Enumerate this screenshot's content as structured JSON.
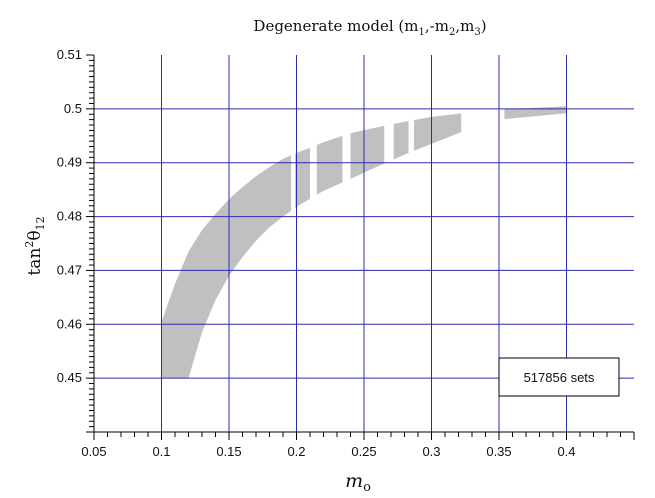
{
  "chart_data": {
    "type": "scatter",
    "title": "Degenerate model (m",
    "title_parts": [
      "Degenerate model (m",
      "1",
      ",-m",
      "2",
      ",m",
      "3",
      ")"
    ],
    "xlabel": "m",
    "xlabel_sub": "o",
    "ylabel": "tan",
    "ylabel_sup": "2",
    "ylabel_theta": "θ",
    "ylabel_sub": "12",
    "xlim": [
      0.05,
      0.45
    ],
    "ylim": [
      0.44,
      0.51
    ],
    "x_ticks": [
      0.05,
      0.1,
      0.15,
      0.2,
      0.25,
      0.3,
      0.35,
      0.4
    ],
    "x_tick_labels": [
      "0.05",
      "0.1",
      "0.15",
      "0.2",
      "0.25",
      "0.3",
      "0.35",
      "0.4"
    ],
    "y_ticks": [
      0.45,
      0.46,
      0.47,
      0.48,
      0.49,
      0.5,
      0.51
    ],
    "y_tick_labels": [
      "0.45",
      "0.46",
      "0.47",
      "0.48",
      "0.49",
      "0.5",
      "0.51"
    ],
    "grid": true,
    "grid_color": "#2b2bb0",
    "region_color": "#c0c0c0",
    "legend": {
      "text": "517856 sets",
      "placement": "bottom-right"
    },
    "band_upper": [
      {
        "x": 0.1,
        "y": 0.4605
      },
      {
        "x": 0.11,
        "y": 0.4675
      },
      {
        "x": 0.12,
        "y": 0.4735
      },
      {
        "x": 0.13,
        "y": 0.4775
      },
      {
        "x": 0.14,
        "y": 0.4805
      },
      {
        "x": 0.15,
        "y": 0.4832
      },
      {
        "x": 0.16,
        "y": 0.4855
      },
      {
        "x": 0.17,
        "y": 0.4875
      },
      {
        "x": 0.18,
        "y": 0.4892
      },
      {
        "x": 0.19,
        "y": 0.4907
      },
      {
        "x": 0.2,
        "y": 0.4918
      },
      {
        "x": 0.22,
        "y": 0.4938
      },
      {
        "x": 0.24,
        "y": 0.4955
      },
      {
        "x": 0.26,
        "y": 0.4966
      },
      {
        "x": 0.28,
        "y": 0.4976
      },
      {
        "x": 0.3,
        "y": 0.4985
      },
      {
        "x": 0.32,
        "y": 0.4991
      },
      {
        "x": 0.35,
        "y": 0.4999
      },
      {
        "x": 0.4,
        "y": 0.5005
      }
    ],
    "band_lower": [
      {
        "x": 0.1,
        "y": 0.45
      },
      {
        "x": 0.12,
        "y": 0.45
      },
      {
        "x": 0.13,
        "y": 0.4585
      },
      {
        "x": 0.14,
        "y": 0.4645
      },
      {
        "x": 0.15,
        "y": 0.469
      },
      {
        "x": 0.16,
        "y": 0.4725
      },
      {
        "x": 0.17,
        "y": 0.4755
      },
      {
        "x": 0.18,
        "y": 0.478
      },
      {
        "x": 0.19,
        "y": 0.48
      },
      {
        "x": 0.2,
        "y": 0.4818
      },
      {
        "x": 0.22,
        "y": 0.4848
      },
      {
        "x": 0.24,
        "y": 0.487
      },
      {
        "x": 0.26,
        "y": 0.4893
      },
      {
        "x": 0.28,
        "y": 0.4915
      },
      {
        "x": 0.3,
        "y": 0.4935
      },
      {
        "x": 0.32,
        "y": 0.4955
      },
      {
        "x": 0.35,
        "y": 0.498
      },
      {
        "x": 0.4,
        "y": 0.4992
      }
    ],
    "gaps": [
      [
        0.196,
        0.199
      ],
      [
        0.21,
        0.215
      ],
      [
        0.234,
        0.24
      ],
      [
        0.265,
        0.272
      ],
      [
        0.283,
        0.287
      ],
      [
        0.322,
        0.354
      ]
    ]
  }
}
